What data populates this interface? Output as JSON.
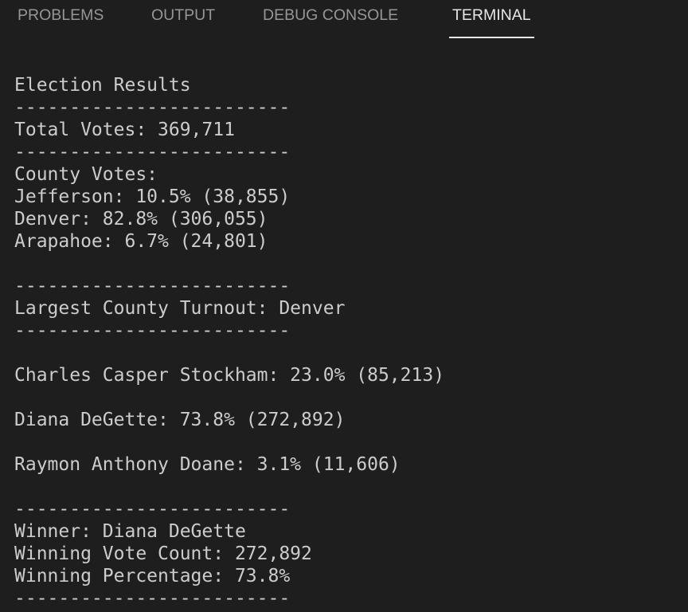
{
  "tabs": [
    "PROBLEMS",
    "OUTPUT",
    "DEBUG CONSOLE",
    "TERMINAL"
  ],
  "active_tab": "TERMINAL",
  "terminal": {
    "blocks": [
      [
        "Election Results",
        "-------------------------",
        "Total Votes: 369,711",
        "-------------------------",
        "County Votes:",
        "Jefferson: 10.5% (38,855)",
        "Denver: 82.8% (306,055)",
        "Arapahoe: 6.7% (24,801)"
      ],
      [
        "-------------------------",
        "Largest County Turnout: Denver",
        "-------------------------"
      ],
      [
        "Charles Casper Stockham: 23.0% (85,213)"
      ],
      [
        "Diana DeGette: 73.8% (272,892)"
      ],
      [
        "Raymon Anthony Doane: 3.1% (11,606)"
      ],
      [
        "-------------------------",
        "Winner: Diana DeGette",
        "Winning Vote Count: 272,892",
        "Winning Percentage: 73.8%",
        "-------------------------"
      ]
    ]
  }
}
